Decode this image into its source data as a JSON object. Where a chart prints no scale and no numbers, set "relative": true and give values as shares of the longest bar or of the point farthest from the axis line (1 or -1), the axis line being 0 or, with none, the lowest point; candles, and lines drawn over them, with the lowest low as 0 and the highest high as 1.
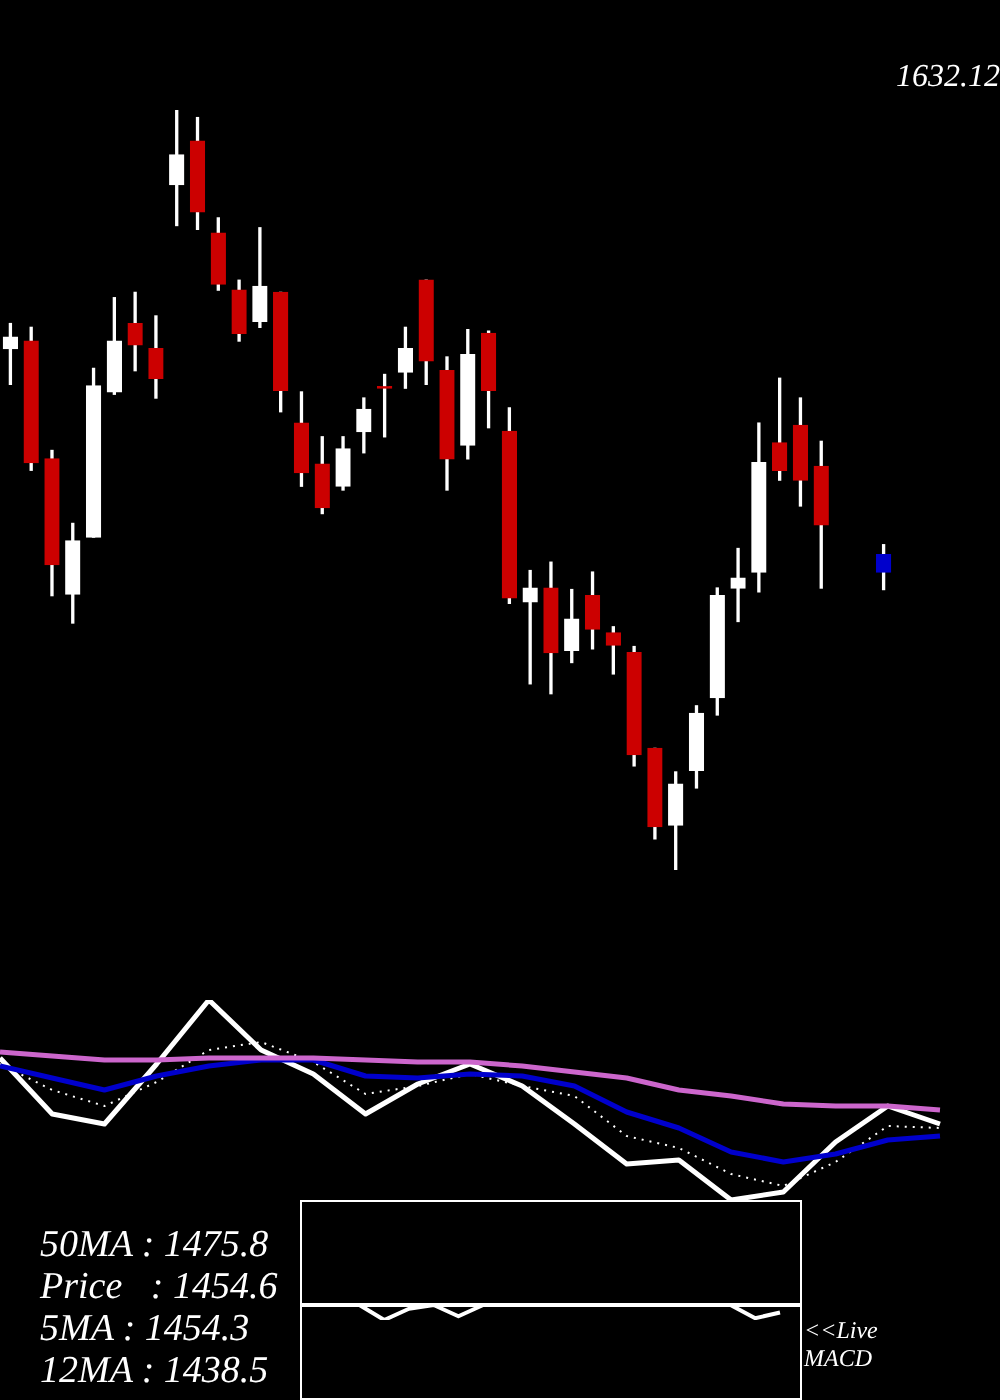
{
  "chart_data": [
    {
      "type": "candlestick",
      "relative": true,
      "categories": [
        null,
        null,
        null,
        null,
        null,
        null,
        null,
        null,
        null,
        null,
        null,
        null,
        null,
        null,
        null,
        null,
        null,
        null,
        null,
        null,
        null,
        null,
        null,
        null,
        null,
        null,
        null,
        null,
        null,
        null,
        null,
        null,
        null,
        null,
        null,
        null,
        null,
        null,
        null,
        null,
        null,
        null,
        null
      ],
      "ohlc": [
        [
          0.686,
          0.719,
          0.639,
          0.701
        ],
        [
          0.696,
          0.714,
          0.526,
          0.536
        ],
        [
          0.541,
          0.552,
          0.361,
          0.402
        ],
        [
          0.363,
          0.456,
          0.325,
          0.433
        ],
        [
          0.438,
          0.66,
          0.438,
          0.637
        ],
        [
          0.629,
          0.753,
          0.626,
          0.696
        ],
        [
          0.719,
          0.76,
          0.657,
          0.691
        ],
        [
          0.686,
          0.729,
          0.621,
          0.647
        ],
        [
          0.902,
          1.0,
          0.848,
          0.941
        ],
        [
          0.959,
          0.99,
          0.843,
          0.866
        ],
        [
          0.838,
          0.858,
          0.763,
          0.771
        ],
        [
          0.763,
          0.776,
          0.696,
          0.706
        ],
        [
          0.722,
          0.845,
          0.714,
          0.768
        ],
        [
          0.76,
          0.76,
          0.603,
          0.631
        ],
        [
          0.588,
          0.629,
          0.505,
          0.523
        ],
        [
          0.534,
          0.57,
          0.469,
          0.477
        ],
        [
          0.505,
          0.57,
          0.5,
          0.554
        ],
        [
          0.577,
          0.621,
          0.549,
          0.606
        ],
        [
          0.634,
          0.652,
          0.57,
          0.634
        ],
        [
          0.655,
          0.714,
          0.634,
          0.686
        ],
        [
          0.776,
          0.776,
          0.639,
          0.67
        ],
        [
          0.657,
          0.675,
          0.5,
          0.541
        ],
        [
          0.559,
          0.711,
          0.541,
          0.678
        ],
        [
          0.706,
          0.709,
          0.582,
          0.631
        ],
        [
          0.577,
          0.608,
          0.351,
          0.358
        ],
        [
          0.353,
          0.394,
          0.245,
          0.371
        ],
        [
          0.371,
          0.405,
          0.232,
          0.286
        ],
        [
          0.289,
          0.369,
          0.273,
          0.33
        ],
        [
          0.361,
          0.392,
          0.291,
          0.317
        ],
        [
          0.312,
          0.32,
          0.258,
          0.296
        ],
        [
          0.286,
          0.294,
          0.137,
          0.152
        ],
        [
          0.16,
          0.16,
          0.041,
          0.057
        ],
        [
          0.059,
          0.129,
          0.0,
          0.113
        ],
        [
          0.131,
          0.216,
          0.108,
          0.206
        ],
        [
          0.227,
          0.371,
          0.204,
          0.361
        ],
        [
          0.371,
          0.423,
          0.327,
          0.384
        ],
        [
          0.392,
          0.588,
          0.366,
          0.536
        ],
        [
          0.562,
          0.647,
          0.513,
          0.526
        ],
        [
          0.585,
          0.621,
          0.479,
          0.513
        ],
        [
          0.531,
          0.564,
          0.371,
          0.454
        ],
        null,
        null,
        [
          0.392,
          0.428,
          0.369,
          0.415
        ]
      ],
      "colors": [
        "#ffffff",
        "#cc0000",
        "#cc0000",
        "#ffffff",
        "#ffffff",
        "#ffffff",
        "#cc0000",
        "#cc0000",
        "#ffffff",
        "#cc0000",
        "#cc0000",
        "#cc0000",
        "#ffffff",
        "#cc0000",
        "#cc0000",
        "#cc0000",
        "#ffffff",
        "#ffffff",
        "#cc0000",
        "#ffffff",
        "#cc0000",
        "#cc0000",
        "#ffffff",
        "#cc0000",
        "#cc0000",
        "#ffffff",
        "#cc0000",
        "#ffffff",
        "#cc0000",
        "#cc0000",
        "#cc0000",
        "#cc0000",
        "#ffffff",
        "#ffffff",
        "#ffffff",
        "#ffffff",
        "#ffffff",
        "#cc0000",
        "#cc0000",
        "#cc0000",
        null,
        null,
        "#0000cc"
      ],
      "annotations": [
        "1632.12"
      ]
    },
    {
      "type": "line",
      "relative": true,
      "categories": [
        null,
        null,
        null,
        null,
        null,
        null,
        null,
        null,
        null,
        null,
        null,
        null,
        null,
        null,
        null,
        null,
        null,
        null,
        null
      ],
      "series": [
        {
          "color": "#cc66cc",
          "values": [
            0.74,
            0.72,
            0.7,
            0.7,
            0.71,
            0.71,
            0.71,
            0.7,
            0.69,
            0.69,
            0.67,
            0.64,
            0.61,
            0.55,
            0.52,
            0.48,
            0.47,
            0.47,
            0.45
          ]
        },
        {
          "color": "#0000cc",
          "values": [
            0.67,
            0.61,
            0.55,
            0.62,
            0.67,
            0.7,
            0.7,
            0.62,
            0.61,
            0.63,
            0.62,
            0.57,
            0.44,
            0.36,
            0.24,
            0.19,
            0.23,
            0.3,
            0.32
          ]
        },
        {
          "color": "#ffffff",
          "line_style": "dotted",
          "values": [
            0.68,
            0.55,
            0.47,
            0.59,
            0.75,
            0.79,
            0.69,
            0.53,
            0.57,
            0.63,
            0.57,
            0.52,
            0.32,
            0.26,
            0.13,
            0.07,
            0.19,
            0.37,
            0.36
          ]
        },
        {
          "color": "#ffffff",
          "values": [
            0.71,
            0.43,
            0.38,
            0.68,
            1.0,
            0.75,
            0.63,
            0.43,
            0.58,
            0.68,
            0.57,
            0.38,
            0.18,
            0.2,
            0.0,
            0.04,
            0.29,
            0.47,
            0.38
          ]
        }
      ],
      "annotations": [
        "50MA : 1475.8",
        "Price   : 1454.6",
        "5MA : 1454.3",
        "12MA : 1438.5"
      ]
    },
    {
      "type": "line",
      "relative": true,
      "categories": [
        null,
        null,
        null,
        null,
        null,
        null,
        null,
        null,
        null,
        null,
        null,
        null,
        null,
        null,
        null,
        null,
        null,
        null,
        null,
        null
      ],
      "series": [
        {
          "color": "#ffffff",
          "values": [
            0,
            0,
            0,
            -1,
            -0.25,
            0,
            -0.75,
            0,
            0,
            0,
            0,
            0,
            0,
            0,
            0,
            0,
            0,
            0,
            -0.88,
            -0.5
          ]
        }
      ],
      "annotations": [
        "<<Live",
        "MACD"
      ]
    }
  ]
}
